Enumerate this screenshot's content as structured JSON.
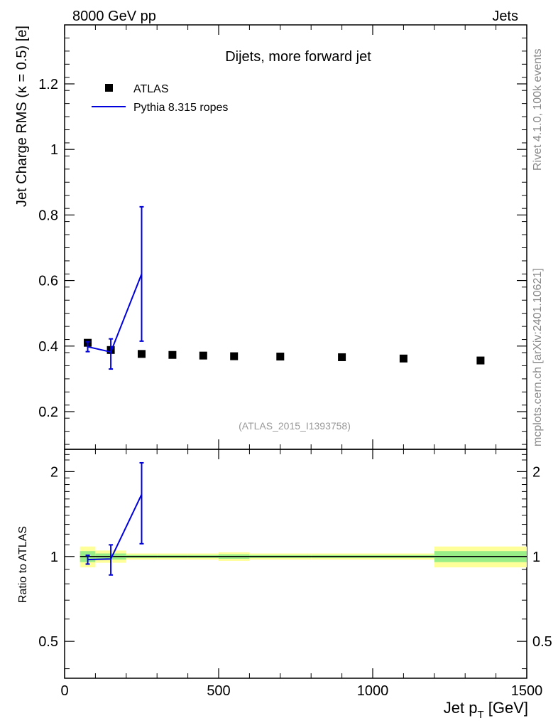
{
  "header": {
    "left_label": "8000 GeV pp",
    "right_label": "Jets"
  },
  "side_labels": {
    "rivet": "Rivet 4.1.0,  100k events",
    "mcplots": "mcplots.cern.ch [arXiv:2401.10621]"
  },
  "chart_data": [
    {
      "type": "scatter",
      "panel": "main",
      "title": "Dijets, more forward jet",
      "watermark": "(ATLAS_2015_I1393758)",
      "ylabel": "Jet Charge RMS (κ = 0.5) [e]",
      "xlim": [
        0,
        1500
      ],
      "ylim": [
        0.085,
        1.38
      ],
      "yticks": [
        0.2,
        0.4,
        0.6,
        0.8,
        1,
        1.2
      ],
      "ytick_labels": [
        "0.2",
        "0.4",
        "0.6",
        "0.8",
        "1",
        "1.2"
      ],
      "legend_position": "top-left",
      "series": [
        {
          "name": "ATLAS",
          "kind": "markers",
          "color": "#000000",
          "x": [
            75,
            150,
            250,
            350,
            450,
            550,
            700,
            900,
            1100,
            1350
          ],
          "y": [
            0.41,
            0.388,
            0.376,
            0.373,
            0.371,
            0.369,
            0.368,
            0.366,
            0.362,
            0.356
          ]
        },
        {
          "name": "Pythia 8.315 ropes",
          "kind": "line",
          "color": "#0000dd",
          "x": [
            75,
            150,
            250
          ],
          "y": [
            0.398,
            0.382,
            0.62
          ],
          "yerr_low": [
            0.383,
            0.33,
            0.415
          ],
          "yerr_high": [
            0.413,
            0.422,
            0.825
          ]
        }
      ]
    },
    {
      "type": "line",
      "panel": "ratio",
      "ylabel": "Ratio to ATLAS",
      "xlabel": "Jet p_T [GeV]",
      "xlim": [
        0,
        1500
      ],
      "xticks": [
        0,
        500,
        1000,
        1500
      ],
      "xtick_labels": [
        "0",
        "500",
        "1000",
        "1500"
      ],
      "ylim": [
        0.37,
        2.4
      ],
      "log_y": true,
      "yticks": [
        0.5,
        1,
        2
      ],
      "ytick_labels": [
        "0.5",
        "1",
        "2"
      ],
      "reference_line": 1,
      "band_bins": [
        {
          "x0": 50,
          "x1": 100,
          "inner": 0.045,
          "outer": 0.085
        },
        {
          "x0": 100,
          "x1": 200,
          "inner": 0.025,
          "outer": 0.05
        },
        {
          "x0": 200,
          "x1": 300,
          "inner": 0.012,
          "outer": 0.025
        },
        {
          "x0": 300,
          "x1": 400,
          "inner": 0.012,
          "outer": 0.025
        },
        {
          "x0": 400,
          "x1": 500,
          "inner": 0.012,
          "outer": 0.025
        },
        {
          "x0": 500,
          "x1": 600,
          "inner": 0.018,
          "outer": 0.035
        },
        {
          "x0": 600,
          "x1": 800,
          "inner": 0.012,
          "outer": 0.025
        },
        {
          "x0": 800,
          "x1": 1000,
          "inner": 0.012,
          "outer": 0.025
        },
        {
          "x0": 1000,
          "x1": 1200,
          "inner": 0.012,
          "outer": 0.025
        },
        {
          "x0": 1200,
          "x1": 1500,
          "inner": 0.045,
          "outer": 0.085
        }
      ],
      "series": [
        {
          "name": "Pythia 8.315 ropes",
          "color": "#0000dd",
          "x": [
            75,
            150,
            250
          ],
          "y": [
            0.975,
            0.98,
            1.66
          ],
          "yerr_low": [
            0.94,
            0.86,
            1.11
          ],
          "yerr_high": [
            1.01,
            1.1,
            2.15
          ]
        }
      ]
    }
  ]
}
